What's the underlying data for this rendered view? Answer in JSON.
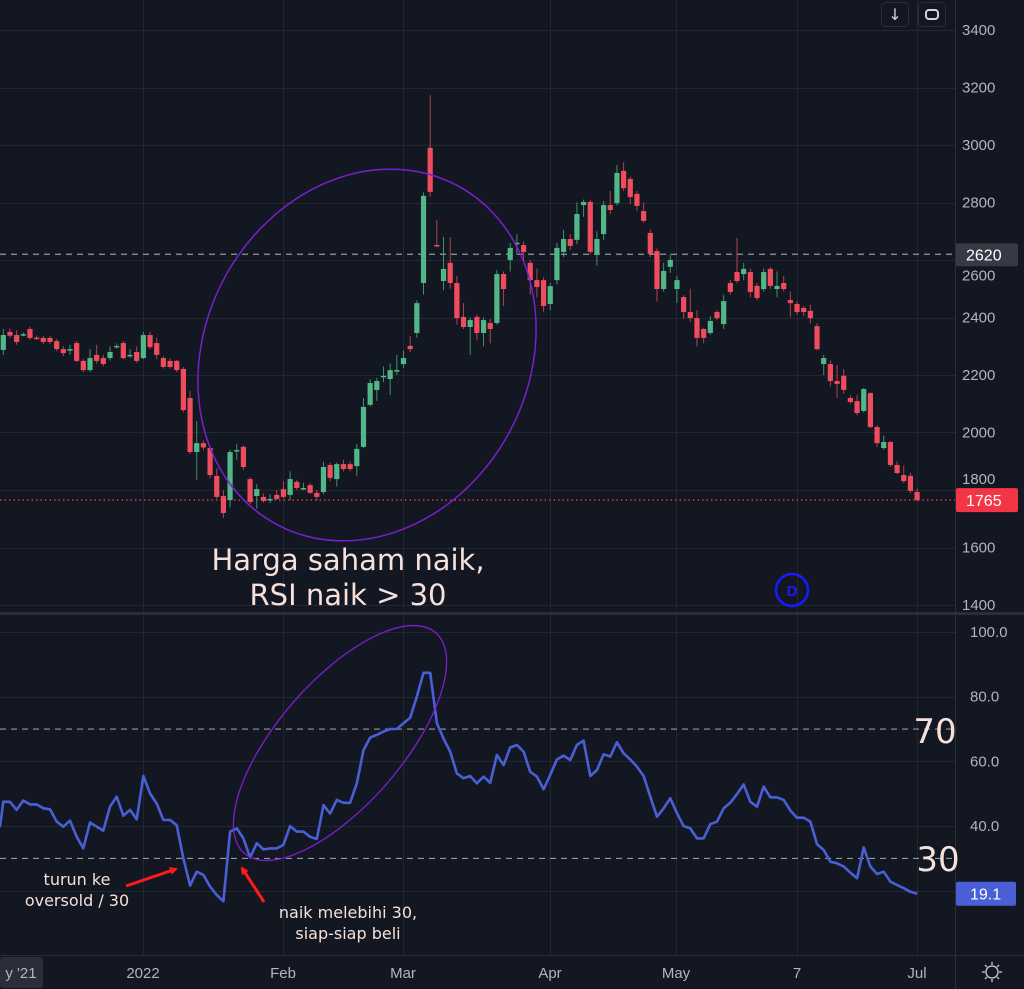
{
  "colors": {
    "background": "#131722",
    "grid": "#232733",
    "up": "#52b788",
    "down": "#ef4d5e",
    "rsi_line": "#4a5fd6",
    "annotation_ellipse": "#7a1fd0",
    "arrow": "#ff1a1a",
    "last_price": "#f23645",
    "rsi_label": "#4a5fd6",
    "ref_label": "#363a45",
    "event_marker": "#1a1aff"
  },
  "toolbar": {
    "scroll_down_icon": "arrow-down-icon",
    "fullscreen_icon": "fullscreen-icon",
    "settings_icon": "gear-icon"
  },
  "chart_data": [
    {
      "type": "candlestick",
      "title": "",
      "ylim": [
        1400,
        3400
      ],
      "y_ticks": [
        "3400",
        "3200",
        "3000",
        "2800",
        "2600",
        "2400",
        "2200",
        "2000",
        "1800",
        "1600",
        "1400"
      ],
      "x_ticks": [
        "y '21",
        "2022",
        "Feb",
        "Mar",
        "Apr",
        "May",
        "7",
        "Jul"
      ],
      "grid": true,
      "reference_line": {
        "value": 2620,
        "label": "2620",
        "style": "dashed"
      },
      "last_price": {
        "value": 1765,
        "label": "1765",
        "style": "dotted"
      },
      "event_marker": {
        "label": "D"
      },
      "candles_ohlc": [
        [
          2287,
          2360,
          2270,
          2339
        ],
        [
          2350,
          2362,
          2330,
          2337
        ],
        [
          2339,
          2355,
          2305,
          2315
        ],
        [
          2338,
          2348,
          2335,
          2342
        ],
        [
          2360,
          2368,
          2322,
          2329
        ],
        [
          2330,
          2337,
          2322,
          2329
        ],
        [
          2329,
          2335,
          2308,
          2315
        ],
        [
          2329,
          2335,
          2308,
          2315
        ],
        [
          2318,
          2325,
          2283,
          2290
        ],
        [
          2290,
          2300,
          2266,
          2276
        ],
        [
          2288,
          2305,
          2270,
          2290
        ],
        [
          2311,
          2318,
          2245,
          2249
        ],
        [
          2249,
          2255,
          2210,
          2217
        ],
        [
          2217,
          2290,
          2210,
          2259
        ],
        [
          2270,
          2305,
          2240,
          2249
        ],
        [
          2259,
          2270,
          2230,
          2238
        ],
        [
          2259,
          2300,
          2250,
          2280
        ],
        [
          2300,
          2310,
          2292,
          2301
        ],
        [
          2311,
          2318,
          2255,
          2259
        ],
        [
          2268,
          2290,
          2260,
          2270
        ],
        [
          2280,
          2300,
          2242,
          2249
        ],
        [
          2259,
          2350,
          2255,
          2339
        ],
        [
          2339,
          2350,
          2290,
          2297
        ],
        [
          2311,
          2330,
          2255,
          2270
        ],
        [
          2259,
          2265,
          2222,
          2228
        ],
        [
          2249,
          2258,
          2222,
          2228
        ],
        [
          2249,
          2252,
          2210,
          2217
        ],
        [
          2221,
          2228,
          2070,
          2078
        ],
        [
          2120,
          2145,
          1925,
          1932
        ],
        [
          1932,
          2040,
          1835,
          1963
        ],
        [
          1963,
          1972,
          1938,
          1948
        ],
        [
          1946,
          1953,
          1840,
          1852
        ],
        [
          1849,
          1875,
          1770,
          1776
        ],
        [
          1779,
          1800,
          1703,
          1720
        ],
        [
          1765,
          1940,
          1740,
          1932
        ],
        [
          1935,
          1960,
          1905,
          1939
        ],
        [
          1950,
          1955,
          1870,
          1880
        ],
        [
          1838,
          1845,
          1750,
          1758
        ],
        [
          1779,
          1820,
          1735,
          1803
        ],
        [
          1776,
          1788,
          1755,
          1762
        ],
        [
          1766,
          1785,
          1755,
          1769
        ],
        [
          1783,
          1800,
          1765,
          1769
        ],
        [
          1803,
          1830,
          1770,
          1776
        ],
        [
          1783,
          1865,
          1765,
          1838
        ],
        [
          1828,
          1835,
          1800,
          1807
        ],
        [
          1805,
          1825,
          1800,
          1807
        ],
        [
          1817,
          1825,
          1785,
          1790
        ],
        [
          1790,
          1800,
          1765,
          1776
        ],
        [
          1793,
          1898,
          1785,
          1880
        ],
        [
          1887,
          1895,
          1830,
          1842
        ],
        [
          1838,
          1895,
          1812,
          1890
        ],
        [
          1890,
          1905,
          1865,
          1873
        ],
        [
          1890,
          1900,
          1865,
          1873
        ],
        [
          1883,
          1960,
          1850,
          1943
        ],
        [
          1950,
          2120,
          1945,
          2089
        ],
        [
          2096,
          2185,
          2090,
          2172
        ],
        [
          2148,
          2190,
          2110,
          2179
        ],
        [
          2195,
          2230,
          2175,
          2197
        ],
        [
          2186,
          2240,
          2130,
          2217
        ],
        [
          2216,
          2270,
          2200,
          2217
        ],
        [
          2238,
          2285,
          2225,
          2259
        ],
        [
          2301,
          2335,
          2280,
          2290
        ],
        [
          2346,
          2460,
          2330,
          2450
        ],
        [
          2520,
          2835,
          2480,
          2823
        ],
        [
          2990,
          3174,
          2820,
          2837
        ],
        [
          2652,
          2739,
          2645,
          2649
        ],
        [
          2527,
          2680,
          2495,
          2569
        ],
        [
          2590,
          2680,
          2500,
          2520
        ],
        [
          2520,
          2545,
          2375,
          2398
        ],
        [
          2402,
          2450,
          2360,
          2367
        ],
        [
          2367,
          2400,
          2270,
          2391
        ],
        [
          2402,
          2410,
          2320,
          2346
        ],
        [
          2346,
          2400,
          2300,
          2391
        ],
        [
          2381,
          2395,
          2310,
          2360
        ],
        [
          2381,
          2565,
          2375,
          2551
        ],
        [
          2551,
          2560,
          2440,
          2499
        ],
        [
          2600,
          2660,
          2560,
          2642
        ],
        [
          2657,
          2690,
          2620,
          2660
        ],
        [
          2652,
          2665,
          2600,
          2628
        ],
        [
          2590,
          2600,
          2480,
          2530
        ],
        [
          2530,
          2570,
          2470,
          2506
        ],
        [
          2530,
          2540,
          2420,
          2440
        ],
        [
          2447,
          2520,
          2425,
          2509
        ],
        [
          2530,
          2660,
          2515,
          2642
        ],
        [
          2628,
          2705,
          2610,
          2673
        ],
        [
          2673,
          2690,
          2635,
          2649
        ],
        [
          2670,
          2800,
          2655,
          2760
        ],
        [
          2791,
          2810,
          2750,
          2802
        ],
        [
          2802,
          2810,
          2620,
          2628
        ],
        [
          2621,
          2700,
          2580,
          2673
        ],
        [
          2690,
          2805,
          2670,
          2791
        ],
        [
          2791,
          2840,
          2760,
          2774
        ],
        [
          2798,
          2930,
          2790,
          2903
        ],
        [
          2910,
          2940,
          2840,
          2850
        ],
        [
          2882,
          2890,
          2795,
          2819
        ],
        [
          2830,
          2840,
          2770,
          2788
        ],
        [
          2770,
          2800,
          2730,
          2736
        ],
        [
          2694,
          2705,
          2610,
          2621
        ],
        [
          2631,
          2640,
          2455,
          2499
        ],
        [
          2499,
          2590,
          2490,
          2562
        ],
        [
          2576,
          2620,
          2555,
          2600
        ],
        [
          2499,
          2545,
          2450,
          2530
        ],
        [
          2471,
          2478,
          2395,
          2419
        ],
        [
          2419,
          2500,
          2385,
          2398
        ],
        [
          2398,
          2425,
          2300,
          2329
        ],
        [
          2360,
          2365,
          2310,
          2329
        ],
        [
          2346,
          2405,
          2340,
          2388
        ],
        [
          2419,
          2425,
          2390,
          2398
        ],
        [
          2377,
          2480,
          2360,
          2457
        ],
        [
          2520,
          2530,
          2480,
          2489
        ],
        [
          2558,
          2677,
          2520,
          2527
        ],
        [
          2551,
          2590,
          2530,
          2569
        ],
        [
          2558,
          2570,
          2470,
          2489
        ],
        [
          2510,
          2520,
          2460,
          2468
        ],
        [
          2499,
          2570,
          2490,
          2558
        ],
        [
          2569,
          2575,
          2500,
          2510
        ],
        [
          2499,
          2560,
          2470,
          2510
        ],
        [
          2520,
          2545,
          2490,
          2499
        ],
        [
          2461,
          2490,
          2400,
          2450
        ],
        [
          2447,
          2455,
          2410,
          2419
        ],
        [
          2433,
          2440,
          2405,
          2419
        ],
        [
          2423,
          2445,
          2380,
          2398
        ],
        [
          2370,
          2380,
          2285,
          2290
        ],
        [
          2238,
          2270,
          2200,
          2259
        ],
        [
          2238,
          2250,
          2160,
          2179
        ],
        [
          2179,
          2235,
          2120,
          2169
        ],
        [
          2197,
          2220,
          2135,
          2148
        ],
        [
          2120,
          2130,
          2100,
          2106
        ],
        [
          2109,
          2130,
          2060,
          2068
        ],
        [
          2075,
          2155,
          2070,
          2151
        ],
        [
          2137,
          2140,
          2015,
          2019
        ],
        [
          2019,
          2025,
          1950,
          1963
        ],
        [
          1946,
          1990,
          1940,
          1967
        ],
        [
          1967,
          1970,
          1880,
          1887
        ],
        [
          1887,
          1900,
          1855,
          1859
        ],
        [
          1852,
          1885,
          1825,
          1831
        ],
        [
          1849,
          1860,
          1790,
          1797
        ],
        [
          1793,
          1805,
          1760,
          1765
        ]
      ],
      "annotations": {
        "main_text_line1": "Harga saham naik,",
        "main_text_line2": "RSI naik > 30"
      }
    },
    {
      "type": "line",
      "title": "",
      "ylim": [
        10,
        100
      ],
      "y_ticks": [
        "100.0",
        "80.0",
        "60.0",
        "40.0"
      ],
      "levels": [
        {
          "value": 70,
          "label": "70"
        },
        {
          "value": 30,
          "label": "30"
        }
      ],
      "last_value": {
        "value": 19.1,
        "label": "19.1"
      },
      "values": [
        47.5,
        47.5,
        45.0,
        47.9,
        46.7,
        46.7,
        45.5,
        45.2,
        41.4,
        39.8,
        41.7,
        36.7,
        33.1,
        41.1,
        39.8,
        38.6,
        46.0,
        49.1,
        43.2,
        45.0,
        42.1,
        55.5,
        50.1,
        47.0,
        41.9,
        41.9,
        40.3,
        30.0,
        21.6,
        25.9,
        24.9,
        21.3,
        18.7,
        16.8,
        38.3,
        39.3,
        36.2,
        30.3,
        34.7,
        32.8,
        33.1,
        33.1,
        34.2,
        40.0,
        38.3,
        38.3,
        36.7,
        36.0,
        46.5,
        43.9,
        48.1,
        47.2,
        47.2,
        53.2,
        63.5,
        67.4,
        68.2,
        69.2,
        70.0,
        70.0,
        71.8,
        73.5,
        80.0,
        87.4,
        87.4,
        71.8,
        67.1,
        63.0,
        56.3,
        54.8,
        55.5,
        53.2,
        55.3,
        53.4,
        62.0,
        58.9,
        64.3,
        65.1,
        63.0,
        56.8,
        55.3,
        51.4,
        55.8,
        60.6,
        61.8,
        60.4,
        65.1,
        66.4,
        55.5,
        57.3,
        62.2,
        61.5,
        65.9,
        62.5,
        60.6,
        58.4,
        55.5,
        49.1,
        42.9,
        45.5,
        48.6,
        44.0,
        40.0,
        39.3,
        36.2,
        36.2,
        40.6,
        41.4,
        45.5,
        47.2,
        49.9,
        52.9,
        47.5,
        46.0,
        52.2,
        48.9,
        48.9,
        48.1,
        44.8,
        42.6,
        42.6,
        41.4,
        34.4,
        32.6,
        29.0,
        28.5,
        27.5,
        25.6,
        23.9,
        33.4,
        27.5,
        25.2,
        25.9,
        22.8,
        21.8,
        20.8,
        19.7,
        19.1
      ],
      "annotations": {
        "oversold_line1": "turun ke",
        "oversold_line2": "oversold / 30",
        "cross_line1": "naik melebihi 30,",
        "cross_line2": "siap-siap beli"
      }
    }
  ]
}
